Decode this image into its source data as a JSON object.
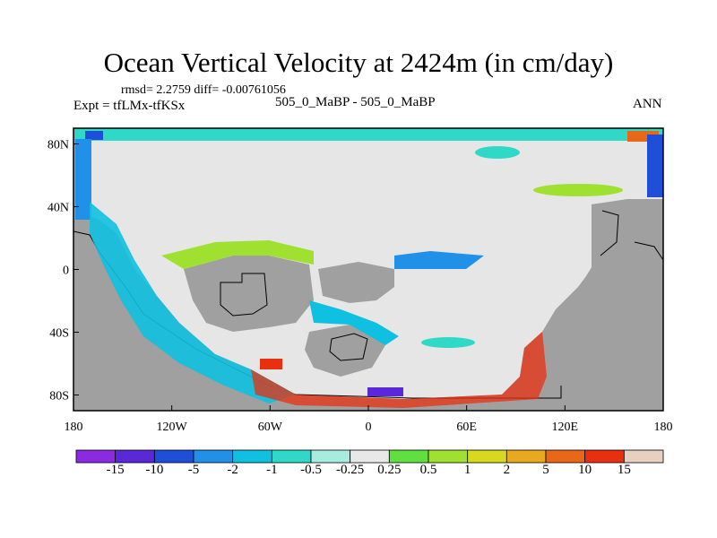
{
  "chart_data": {
    "type": "heatmap",
    "title": "Ocean Vertical Velocity at 2424m (in cm/day)",
    "stats": "rmsd= 2.2759 diff= -0.00761056",
    "experiment": "Expt = tfLMx-tfKSx",
    "subtitle": "505_0_MaBP - 505_0_MaBP",
    "season": "ANN",
    "x_tick_labels": [
      "180",
      "120W",
      "60W",
      "0",
      "60E",
      "120E",
      "180"
    ],
    "y_tick_labels": [
      "80N",
      "40N",
      "0",
      "40S",
      "80S"
    ],
    "xlim": [
      -180,
      180
    ],
    "ylim": [
      -90,
      90
    ],
    "colorbar": {
      "levels": [
        "-15",
        "-10",
        "-5",
        "-2",
        "-1",
        "-0.5",
        "-0.25",
        "0.25",
        "0.5",
        "1",
        "2",
        "5",
        "10",
        "15"
      ],
      "colors": [
        "#8a2be2",
        "#5a28d8",
        "#1f4fd8",
        "#2090e8",
        "#10c0e0",
        "#30d8c8",
        "#a8ece0",
        "#e8e8e8",
        "#60e040",
        "#a0e030",
        "#d8d820",
        "#e8a820",
        "#e86818",
        "#e83010",
        "#e8d0c0"
      ]
    },
    "colors": {
      "land": "#a0a0a0",
      "ocean_neutral": "#e6e6e6"
    }
  }
}
